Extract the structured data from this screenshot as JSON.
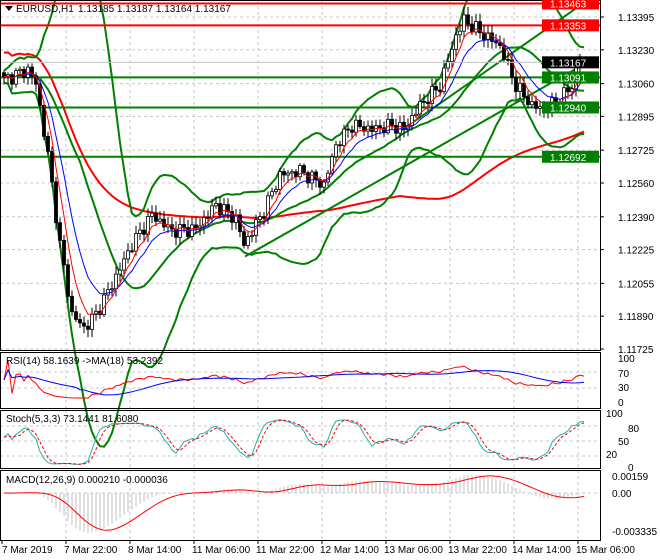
{
  "header": {
    "symbol": "EURUSD,H1",
    "ohlc": "1.13185 1.13187 1.13164 1.13167"
  },
  "colors": {
    "bull": "#000000",
    "bear": "#000000",
    "level_red": "#ff0000",
    "level_green": "#008000",
    "ma_fast": "#ff0000",
    "ma_slow": "#0000ff",
    "bands": "#008000",
    "stoch_main": "#20b2aa",
    "stoch_signal": "#ff0000",
    "macd_hist": "#c0c0c0",
    "macd_signal": "#ff0000"
  },
  "chart_data": [
    {
      "type": "candlestick",
      "title": "EURUSD,H1",
      "x_tick_labels": [
        "7 Mar 2019",
        "7 Mar 22:00",
        "8 Mar 14:00",
        "11 Mar 06:00",
        "11 Mar 22:00",
        "12 Mar 14:00",
        "13 Mar 06:00",
        "13 Mar 22:00",
        "14 Mar 14:00",
        "15 Mar 06:00"
      ],
      "y_tick_labels": [
        "1.13395",
        "1.13230",
        "1.13060",
        "1.12895",
        "1.12725",
        "1.12560",
        "1.12390",
        "1.12225",
        "1.12055",
        "1.11890",
        "1.11725"
      ],
      "ylim": [
        1.11725,
        1.13395
      ],
      "grid": true,
      "close_path": [
        [
          0,
          1.1308
        ],
        [
          6,
          1.1313
        ],
        [
          8,
          1.1306
        ],
        [
          11,
          1.127
        ],
        [
          14,
          1.1225
        ],
        [
          17,
          1.119
        ],
        [
          20,
          1.1183
        ],
        [
          23,
          1.119
        ],
        [
          27,
          1.1205
        ],
        [
          32,
          1.1225
        ],
        [
          37,
          1.124
        ],
        [
          42,
          1.1232
        ],
        [
          48,
          1.1233
        ],
        [
          53,
          1.1245
        ],
        [
          58,
          1.1238
        ],
        [
          60,
          1.1225
        ],
        [
          65,
          1.1242
        ],
        [
          69,
          1.126
        ],
        [
          74,
          1.1262
        ],
        [
          80,
          1.1255
        ],
        [
          83,
          1.1275
        ],
        [
          87,
          1.1285
        ],
        [
          92,
          1.1283
        ],
        [
          97,
          1.1285
        ],
        [
          100,
          1.1283
        ],
        [
          104,
          1.1295
        ],
        [
          109,
          1.1305
        ],
        [
          113,
          1.133
        ],
        [
          115,
          1.1338
        ],
        [
          119,
          1.1332
        ],
        [
          124,
          1.1325
        ],
        [
          128,
          1.1305
        ],
        [
          132,
          1.1295
        ],
        [
          135,
          1.1293
        ],
        [
          139,
          1.1298
        ],
        [
          142,
          1.1305
        ],
        [
          144,
          1.132
        ],
        [
          145,
          1.13167
        ]
      ],
      "last_bar": {
        "open": 1.13185,
        "high": 1.13187,
        "low": 1.13164,
        "close": 1.13167
      },
      "levels": [
        {
          "label": "1.13463",
          "value": 1.13463,
          "color": "#ff0000"
        },
        {
          "label": "1.13353",
          "value": 1.13353,
          "color": "#ff0000"
        },
        {
          "label": "1.13091",
          "value": 1.13091,
          "color": "#008000"
        },
        {
          "label": "1.12940",
          "value": 1.1294,
          "color": "#008000"
        },
        {
          "label": "1.12692",
          "value": 1.12692,
          "color": "#008000"
        }
      ],
      "current_price": {
        "label": "1.13167",
        "value": 1.13167
      }
    },
    {
      "type": "line",
      "title": "RSI(14) 58.1639  ->MA(18) 53.2392",
      "y_tick_labels": [
        "100",
        "70",
        "30",
        "0"
      ],
      "ylim": [
        0,
        100
      ]
    },
    {
      "type": "line",
      "title": "Stoch(5,3,3) 73.1441 81.6080",
      "y_tick_labels": [
        "100",
        "80",
        "50",
        "20",
        "0"
      ],
      "ylim": [
        0,
        100
      ]
    },
    {
      "type": "bar",
      "title": "MACD(12,26,9) 0.000210 -0.000036",
      "y_tick_labels": [
        "0.00159",
        "0.00",
        "-0.003335"
      ],
      "ylim": [
        -0.003335,
        0.00159
      ]
    }
  ]
}
